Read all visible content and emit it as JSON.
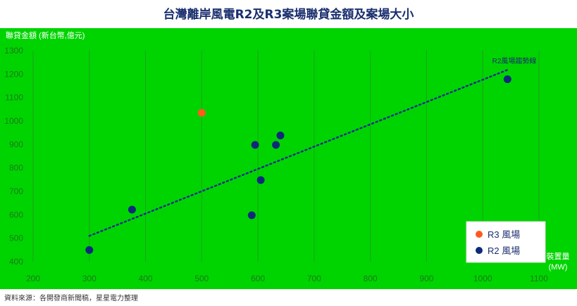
{
  "title": "台灣離岸風電R2及R3案場聯貸金額及案場大小",
  "source_note": "資料來源：各開發商新聞稿，星星電力整理",
  "colors": {
    "background": "#00d400",
    "r2": "#0d2a7a",
    "r3": "#ff5a1f",
    "trendline": "#1a2e8c",
    "grid": "#1fa11f"
  },
  "chart_data": {
    "type": "scatter",
    "title": "台灣離岸風電R2及R3案場聯貸金額及案場大小",
    "ylabel": "聯貸金額 (新台幣,億元)",
    "xlabel": "裝置量 (MW)",
    "xlabel_lines": [
      "裝置量",
      "(MW)"
    ],
    "xlim": [
      200,
      1100
    ],
    "ylim": [
      400,
      1300
    ],
    "xticks": [
      200,
      300,
      400,
      500,
      600,
      700,
      800,
      900,
      1000,
      1100
    ],
    "yticks": [
      400,
      500,
      600,
      700,
      800,
      900,
      1000,
      1100,
      1200,
      1300
    ],
    "grid": "vertical",
    "legend_position": "bottom-right",
    "series": [
      {
        "name": "R3 風場",
        "color": "#ff5a1f",
        "points": [
          {
            "x": 500,
            "y": 1035
          }
        ]
      },
      {
        "name": "R2 風場",
        "color": "#0d2a7a",
        "points": [
          {
            "x": 300,
            "y": 450
          },
          {
            "x": 376,
            "y": 622
          },
          {
            "x": 589,
            "y": 598
          },
          {
            "x": 595,
            "y": 898
          },
          {
            "x": 605,
            "y": 748
          },
          {
            "x": 632,
            "y": 898
          },
          {
            "x": 640,
            "y": 938
          },
          {
            "x": 1044,
            "y": 1178
          }
        ]
      }
    ],
    "trendline": {
      "label": "R2風場趨勢線",
      "from": {
        "x": 300,
        "y": 510
      },
      "to": {
        "x": 1044,
        "y": 1218
      }
    }
  }
}
